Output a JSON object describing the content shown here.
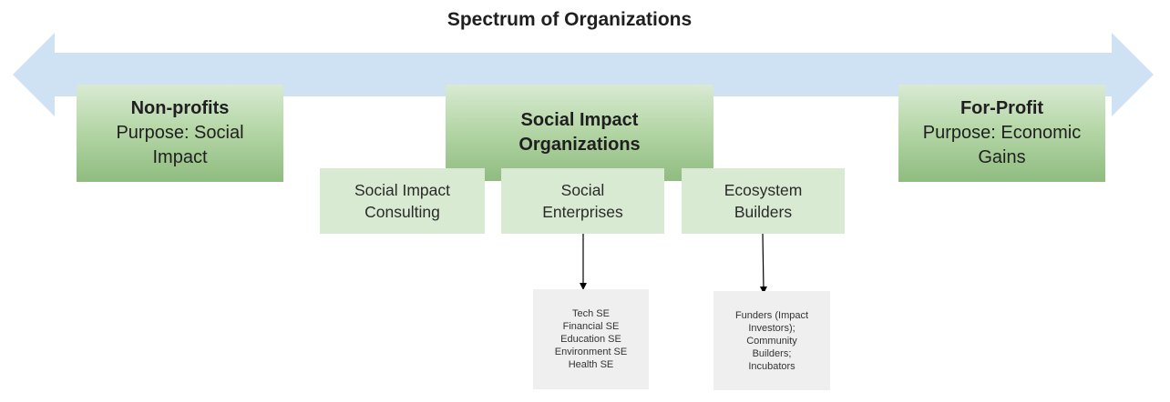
{
  "title": "Spectrum of Organizations",
  "colors": {
    "arrow": "#cfe2f3",
    "main_box_light": "#d9ead3",
    "main_box_dark": "#8fbc7f",
    "sub_box": "#d9ead3",
    "leaf_box": "#efefef",
    "connector": "#000000"
  },
  "nonprofits": {
    "heading": "Non-profits",
    "lines": [
      "Purpose: Social",
      "Impact"
    ]
  },
  "social_impact": {
    "heading_lines": [
      "Social Impact",
      "Organizations"
    ]
  },
  "forprofit": {
    "heading": "For-Profit",
    "lines": [
      "Purpose: Economic",
      "Gains"
    ]
  },
  "sub_categories": [
    {
      "lines": [
        "Social Impact",
        "Consulting"
      ]
    },
    {
      "lines": [
        "Social",
        "Enterprises"
      ]
    },
    {
      "lines": [
        "Ecosystem",
        "Builders"
      ]
    }
  ],
  "enterprise_types": [
    "Tech SE",
    "Financial SE",
    "Education SE",
    "Environment SE",
    "Health SE"
  ],
  "ecosystem_types": [
    "Funders (Impact",
    "Investors);",
    "Community",
    "Builders;",
    "Incubators"
  ]
}
